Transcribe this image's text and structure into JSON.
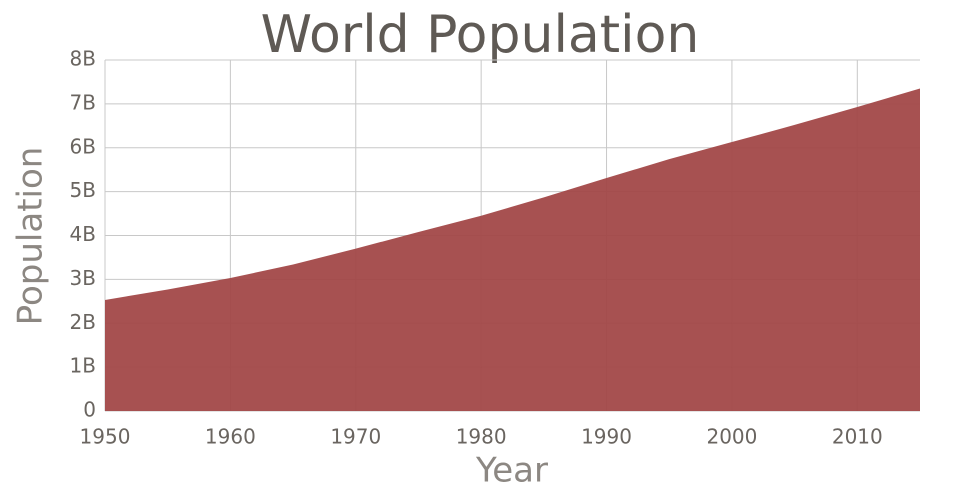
{
  "chart_data": {
    "type": "area",
    "title": "World Population",
    "x_label": "Year",
    "y_label": "Population",
    "x": [
      1950,
      1955,
      1960,
      1965,
      1970,
      1975,
      1980,
      1985,
      1990,
      1995,
      2000,
      2005,
      2010,
      2015
    ],
    "values": [
      2530000000,
      2770000000,
      3030000000,
      3340000000,
      3700000000,
      4080000000,
      4450000000,
      4870000000,
      5310000000,
      5740000000,
      6130000000,
      6520000000,
      6930000000,
      7350000000
    ],
    "color": "#a24848",
    "xlim": [
      1950,
      2015
    ],
    "xticks": [
      1950,
      1960,
      1970,
      1980,
      1990,
      2000,
      2010
    ],
    "ylim": [
      0,
      8000000000
    ],
    "yticks": [
      0,
      {
        "value": 1000000000,
        "label": "1B"
      },
      {
        "value": 2000000000,
        "label": "2B"
      },
      {
        "value": 3000000000,
        "label": "3B"
      },
      {
        "value": 4000000000,
        "label": "4B"
      },
      {
        "value": 5000000000,
        "label": "5B"
      },
      {
        "value": 6000000000,
        "label": "6B"
      },
      {
        "value": 7000000000,
        "label": "7B"
      },
      {
        "value": 8000000000,
        "label": "8B"
      }
    ],
    "grid": true
  }
}
